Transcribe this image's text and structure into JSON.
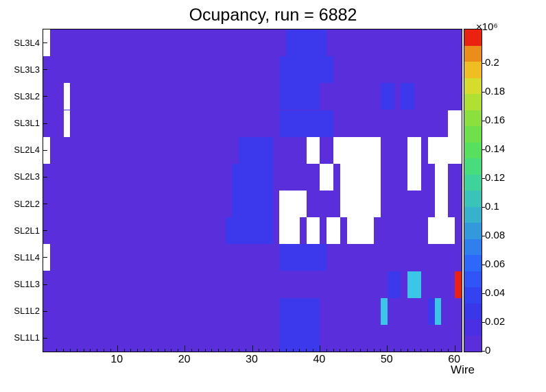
{
  "title": "Ocupancy, run = 6882",
  "x_axis": {
    "label": "Wire",
    "ticks": [
      10,
      20,
      30,
      40,
      50,
      60
    ],
    "min": -1,
    "max": 61
  },
  "colorbar": {
    "exponent": "×10⁶",
    "tick_labels": [
      "0",
      "0.02",
      "0.04",
      "0.06",
      "0.08",
      "0.1",
      "0.12",
      "0.14",
      "0.16",
      "0.18",
      "0.2"
    ],
    "tick_step": 0.02,
    "zmax": 0.224,
    "palette": [
      "#5b2edb",
      "#4a30e2",
      "#3a36ea",
      "#3343f1",
      "#2f55f6",
      "#2c68fa",
      "#2f80ee",
      "#3399dd",
      "#36b2cd",
      "#3ac4b8",
      "#3fd39c",
      "#47dc7c",
      "#56e05e",
      "#6ee04c",
      "#8ce03e",
      "#b0e034",
      "#d6dc2c",
      "#f0be22",
      "#ec8c1a",
      "#ea2210"
    ]
  },
  "chart_data": {
    "type": "heatmap",
    "title": "Ocupancy, run = 6882",
    "xlabel": "Wire",
    "rows_top_to_bottom": [
      "SL3L4",
      "SL3L3",
      "SL3L2",
      "SL3L1",
      "SL2L4",
      "SL2L3",
      "SL2L2",
      "SL2L1",
      "SL1L4",
      "SL1L3",
      "SL1L2",
      "SL1L1"
    ],
    "n_cols": 62,
    "default_level": "low",
    "levels_value_x1e6": {
      "low": 0.005,
      "mid": 0.025,
      "cyan": 0.08,
      "red": 0.215,
      "empty": null
    },
    "level_colors": {
      "low": "#5b2edb",
      "mid": "#3c38ec",
      "cyan": "#3bc6e8",
      "red": "#ea2210",
      "empty": "#ffffff"
    },
    "cells": [
      {
        "row": "SL3L4",
        "c0": 1,
        "c1": 1,
        "level": "empty"
      },
      {
        "row": "SL3L4",
        "c0": 37,
        "c1": 42,
        "level": "mid"
      },
      {
        "row": "SL3L3",
        "c0": 36,
        "c1": 43,
        "level": "mid"
      },
      {
        "row": "SL3L2",
        "c0": 4,
        "c1": 4,
        "level": "empty"
      },
      {
        "row": "SL3L2",
        "c0": 36,
        "c1": 41,
        "level": "mid"
      },
      {
        "row": "SL3L2",
        "c0": 51,
        "c1": 52,
        "level": "mid"
      },
      {
        "row": "SL3L2",
        "c0": 54,
        "c1": 55,
        "level": "mid"
      },
      {
        "row": "SL3L1",
        "c0": 4,
        "c1": 4,
        "level": "empty"
      },
      {
        "row": "SL3L1",
        "c0": 36,
        "c1": 43,
        "level": "mid"
      },
      {
        "row": "SL3L1",
        "c0": 61,
        "c1": 62,
        "level": "empty"
      },
      {
        "row": "SL2L4",
        "c0": 1,
        "c1": 1,
        "level": "empty"
      },
      {
        "row": "SL2L4",
        "c0": 30,
        "c1": 34,
        "level": "mid"
      },
      {
        "row": "SL2L4",
        "c0": 40,
        "c1": 41,
        "level": "empty"
      },
      {
        "row": "SL2L4",
        "c0": 44,
        "c1": 50,
        "level": "empty"
      },
      {
        "row": "SL2L4",
        "c0": 55,
        "c1": 56,
        "level": "empty"
      },
      {
        "row": "SL2L4",
        "c0": 58,
        "c1": 62,
        "level": "empty"
      },
      {
        "row": "SL2L3",
        "c0": 29,
        "c1": 34,
        "level": "mid"
      },
      {
        "row": "SL2L3",
        "c0": 42,
        "c1": 43,
        "level": "empty"
      },
      {
        "row": "SL2L3",
        "c0": 45,
        "c1": 50,
        "level": "empty"
      },
      {
        "row": "SL2L3",
        "c0": 55,
        "c1": 56,
        "level": "empty"
      },
      {
        "row": "SL2L3",
        "c0": 59,
        "c1": 60,
        "level": "empty"
      },
      {
        "row": "SL2L2",
        "c0": 29,
        "c1": 34,
        "level": "mid"
      },
      {
        "row": "SL2L2",
        "c0": 36,
        "c1": 39,
        "level": "empty"
      },
      {
        "row": "SL2L2",
        "c0": 45,
        "c1": 50,
        "level": "empty"
      },
      {
        "row": "SL2L2",
        "c0": 59,
        "c1": 60,
        "level": "empty"
      },
      {
        "row": "SL2L1",
        "c0": 28,
        "c1": 34,
        "level": "mid"
      },
      {
        "row": "SL2L1",
        "c0": 36,
        "c1": 38,
        "level": "empty"
      },
      {
        "row": "SL2L1",
        "c0": 40,
        "c1": 41,
        "level": "empty"
      },
      {
        "row": "SL2L1",
        "c0": 43,
        "c1": 44,
        "level": "empty"
      },
      {
        "row": "SL2L1",
        "c0": 46,
        "c1": 49,
        "level": "empty"
      },
      {
        "row": "SL2L1",
        "c0": 58,
        "c1": 61,
        "level": "empty"
      },
      {
        "row": "SL1L4",
        "c0": 1,
        "c1": 1,
        "level": "empty"
      },
      {
        "row": "SL1L4",
        "c0": 36,
        "c1": 42,
        "level": "mid"
      },
      {
        "row": "SL1L3",
        "c0": 52,
        "c1": 53,
        "level": "mid"
      },
      {
        "row": "SL1L3",
        "c0": 55,
        "c1": 56,
        "level": "cyan"
      },
      {
        "row": "SL1L3",
        "c0": 62,
        "c1": 62,
        "level": "red"
      },
      {
        "row": "SL1L2",
        "c0": 36,
        "c1": 41,
        "level": "mid"
      },
      {
        "row": "SL1L2",
        "c0": 51,
        "c1": 51,
        "level": "cyan"
      },
      {
        "row": "SL1L2",
        "c0": 58,
        "c1": 58,
        "level": "mid"
      },
      {
        "row": "SL1L2",
        "c0": 59,
        "c1": 59,
        "level": "cyan"
      },
      {
        "row": "SL1L1",
        "c0": 36,
        "c1": 41,
        "level": "mid"
      }
    ]
  }
}
